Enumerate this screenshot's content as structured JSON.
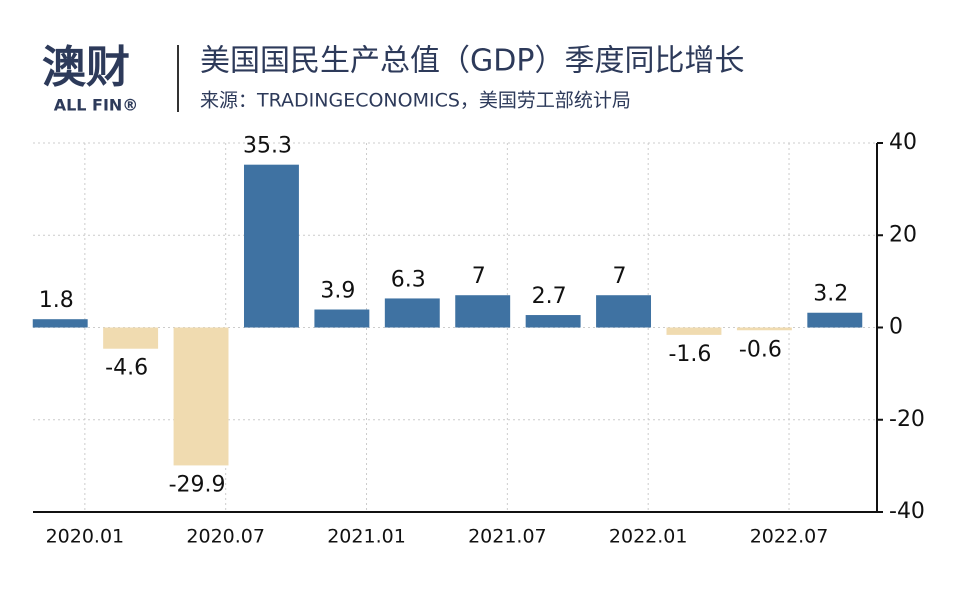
{
  "brand": {
    "name": "澳财",
    "sub": "ALL FIN®"
  },
  "chart_data": {
    "type": "bar",
    "title": "美国国民生产总值（GDP）季度同比增长",
    "subtitle": "来源：TRADINGECONOMICS，美国劳工部统计局",
    "categories": [
      "2020.01",
      null,
      "2020.07",
      null,
      "2021.01",
      null,
      "2021.07",
      null,
      "2022.01",
      null,
      "2022.07",
      null
    ],
    "values": [
      1.8,
      -4.6,
      -29.9,
      35.3,
      3.9,
      6.3,
      7,
      2.7,
      7,
      -1.6,
      -0.6,
      3.2
    ],
    "positive_color": "#3f72a2",
    "negative_color": "#f0dbb0",
    "ylim": [
      -40,
      40
    ],
    "yticks": [
      -40,
      -20,
      0,
      20,
      40
    ],
    "y_axis_side": "right",
    "grid": true
  }
}
